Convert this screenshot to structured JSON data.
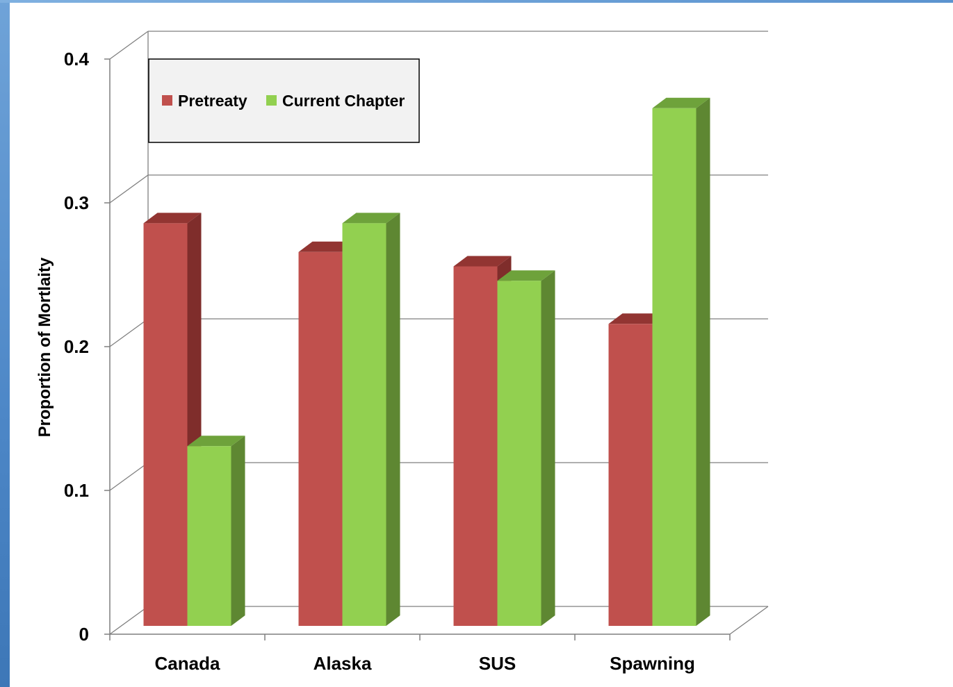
{
  "chart_data": {
    "type": "bar",
    "categories": [
      "Canada",
      "Alaska",
      "SUS",
      "Spawning"
    ],
    "series": [
      {
        "name": "Pretreaty",
        "values": [
          0.28,
          0.26,
          0.25,
          0.21
        ]
      },
      {
        "name": "Current Chapter",
        "values": [
          0.125,
          0.28,
          0.24,
          0.36
        ]
      }
    ],
    "title": "",
    "xlabel": "",
    "ylabel": "Proportion of  Mortlaity",
    "ylim": [
      0,
      0.4
    ],
    "yticks": [
      0,
      0.1,
      0.2,
      0.3,
      0.4
    ],
    "ytick_labels": [
      "0",
      "0.1",
      "0.2",
      "0.3",
      "0.4"
    ],
    "grid": true,
    "style": "3d-clustered-column",
    "legend_position": "top-left",
    "colors": {
      "Pretreaty": "#c0504d",
      "Pretreaty_side": "#7f2d2b",
      "Pretreaty_top": "#923532",
      "Current Chapter": "#92d050",
      "Current Chapter_side": "#5e8732",
      "Current Chapter_top": "#6ea23b"
    }
  }
}
